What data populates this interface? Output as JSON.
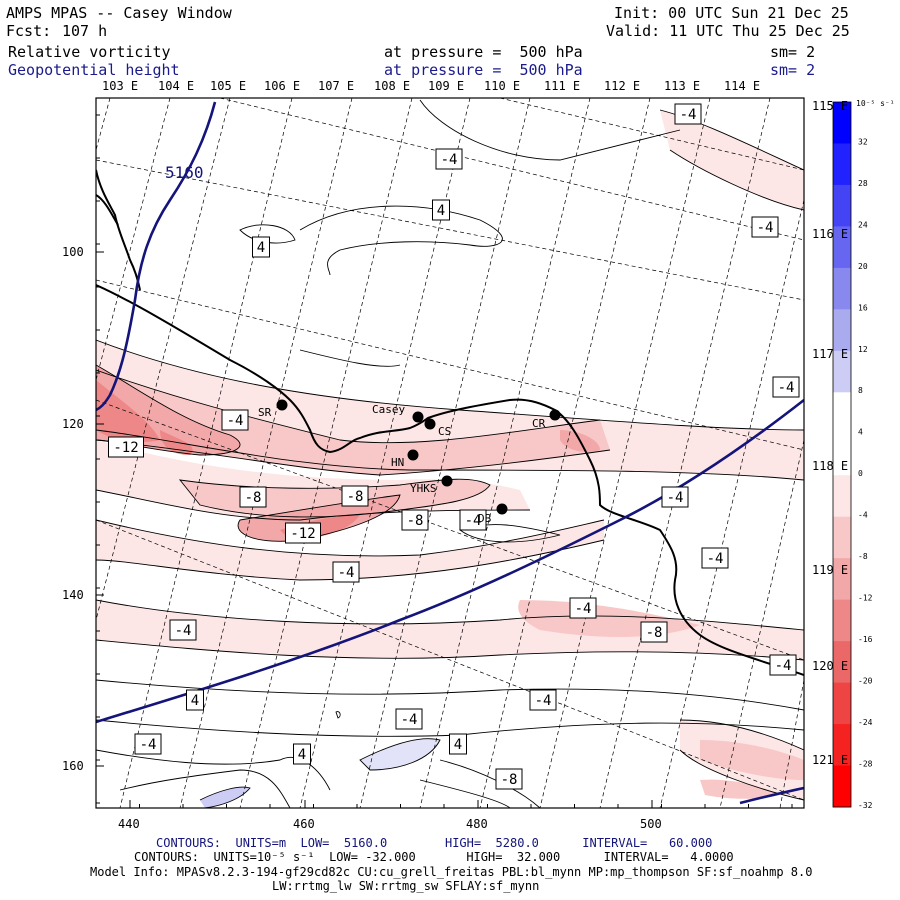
{
  "header": {
    "title": "AMPS MPAS -- Casey Window",
    "fcst_label": "Fcst:",
    "fcst_value": "107 h",
    "init": "Init: 00 UTC Sun 21 Dec 25",
    "valid": "Valid: 11 UTC Thu 25 Dec 25",
    "field1_name": "Relative vorticity",
    "field1_level": "at pressure =  500 hPa",
    "field1_sm": "sm= 2",
    "field2_name": "Geopotential height",
    "field2_level": "at pressure =  500 hPa",
    "field2_sm": "sm= 2"
  },
  "map": {
    "top_lon_labels": [
      "103 E",
      "104 E",
      "105 E",
      "106 E",
      "107 E",
      "108 E",
      "109 E",
      "110 E",
      "111 E",
      "112 E",
      "113 E",
      "114 E"
    ],
    "right_lon_labels": [
      "115 E",
      "116 E",
      "117 E",
      "118 E",
      "119 E",
      "120 E",
      "121 E"
    ],
    "x_ticks": [
      "440",
      "460",
      "480",
      "500"
    ],
    "y_ticks": [
      "100",
      "120",
      "140",
      "160"
    ],
    "height_contour_label": "5160",
    "stations": [
      {
        "name": "SR"
      },
      {
        "name": "Casey"
      },
      {
        "name": "CS"
      },
      {
        "name": "HN"
      },
      {
        "name": "CR"
      },
      {
        "name": "YHKS"
      },
      {
        "name": "DB"
      }
    ],
    "contour_labels": [
      "-4",
      "-4",
      "4",
      "-4",
      "4",
      "-4",
      "-4",
      "-12",
      "-8",
      "-8",
      "-12",
      "-8",
      "-4",
      "-4",
      "-4",
      "-4",
      "-4",
      "-4",
      "-8",
      "-4",
      "4",
      "-4",
      "-4",
      "4",
      "-4",
      "4",
      "-8"
    ]
  },
  "colorbar": {
    "unit_label": "10⁻⁵ s⁻¹",
    "ticks": [
      "32",
      "28",
      "24",
      "20",
      "16",
      "12",
      "8",
      "4",
      "0",
      "-4",
      "-8",
      "-12",
      "-16",
      "-20",
      "-24",
      "-28",
      "-32"
    ],
    "colors": [
      "#0000ff",
      "#2222ff",
      "#4444f5",
      "#6666f0",
      "#8888ee",
      "#aaaaee",
      "#ccccf5",
      "#ffffff",
      "#ffffff",
      "#fde6e6",
      "#f8c8c8",
      "#f2a8a8",
      "#ee8888",
      "#ea6868",
      "#ef4444",
      "#f52222",
      "#ff0000"
    ]
  },
  "footer": {
    "contours1_label": "CONTOURS:  UNITS=m  LOW=  5160.0        HIGH=  5280.0      INTERVAL=   60.000",
    "contours2_label": "CONTOURS:  UNITS=10⁻⁵ s⁻¹  LOW= -32.000       HIGH=  32.000      INTERVAL=   4.0000",
    "model_info": "Model Info: MPASv8.2.3-194-gf29cd82c CU:cu_grell_freitas PBL:bl_mynn MP:mp_thompson SF:sf_noahmp 8.0",
    "model_info2": "LW:rrtmg_lw SW:rrtmg_sw SFLAY:sf_mynn"
  }
}
